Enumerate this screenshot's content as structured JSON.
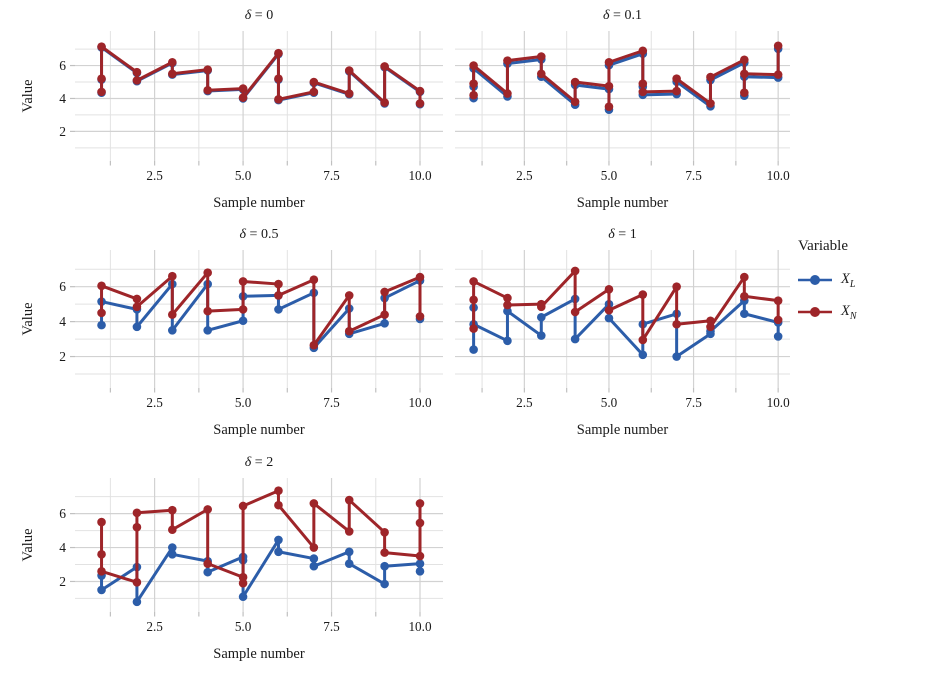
{
  "chart_data": {
    "type": "line",
    "facet_variable": "δ",
    "axes": {
      "xlabel": "Sample number",
      "ylabel": "Value",
      "xticks": [
        2.5,
        5.0,
        7.5,
        10.0
      ],
      "xtick_labels": [
        "2.5",
        "5.0",
        "7.5",
        "10.0"
      ],
      "yticks": [
        2,
        4,
        6
      ],
      "ytick_labels": [
        "2",
        "4",
        "6"
      ],
      "minor_xticks": [
        1.25,
        3.75,
        6.25,
        8.75
      ],
      "minor_yticks": [
        1,
        3,
        5,
        7
      ],
      "xlim": [
        0.25,
        10.65
      ],
      "ylim": [
        0.2,
        8.1
      ],
      "grid": true
    },
    "colors": {
      "X_L": "#2c5da9",
      "X_N": "#9e2529",
      "grid_major": "#d2d2d2",
      "grid_minor": "#e2e2e2",
      "tick": "#c0c0c0",
      "text": "#1a1a1a"
    },
    "panels": [
      {
        "delta": 0,
        "title": {
          "symbol": "δ",
          "eq": " = 0"
        },
        "series": [
          {
            "name": "X_L",
            "points": [
              [
                1,
                4.35
              ],
              [
                1,
                5.15
              ],
              [
                1,
                7.1
              ],
              [
                2,
                5.55
              ],
              [
                2,
                5.05
              ],
              [
                3,
                6.15
              ],
              [
                3,
                5.45
              ],
              [
                4,
                5.7
              ],
              [
                4,
                4.45
              ],
              [
                5,
                4.55
              ],
              [
                5,
                4.0
              ],
              [
                6,
                6.7
              ],
              [
                6,
                5.15
              ],
              [
                6,
                3.9
              ],
              [
                7,
                4.35
              ],
              [
                7,
                4.95
              ],
              [
                8,
                4.25
              ],
              [
                8,
                5.65
              ],
              [
                9,
                3.7
              ],
              [
                9,
                5.9
              ],
              [
                10,
                4.4
              ],
              [
                10,
                3.65
              ]
            ]
          },
          {
            "name": "X_N",
            "points": [
              [
                1,
                4.4
              ],
              [
                1,
                5.2
              ],
              [
                1,
                7.15
              ],
              [
                2,
                5.6
              ],
              [
                2,
                5.1
              ],
              [
                3,
                6.2
              ],
              [
                3,
                5.5
              ],
              [
                4,
                5.75
              ],
              [
                4,
                4.5
              ],
              [
                5,
                4.6
              ],
              [
                5,
                4.05
              ],
              [
                6,
                6.75
              ],
              [
                6,
                5.2
              ],
              [
                6,
                3.95
              ],
              [
                7,
                4.4
              ],
              [
                7,
                5.0
              ],
              [
                8,
                4.3
              ],
              [
                8,
                5.7
              ],
              [
                9,
                3.75
              ],
              [
                9,
                5.95
              ],
              [
                10,
                4.45
              ],
              [
                10,
                3.7
              ]
            ]
          }
        ]
      },
      {
        "delta": 0.1,
        "title": {
          "symbol": "δ",
          "eq": " = 0.1"
        },
        "series": [
          {
            "name": "X_L",
            "points": [
              [
                1,
                4.02
              ],
              [
                1,
                4.72
              ],
              [
                1,
                5.82
              ],
              [
                2,
                4.12
              ],
              [
                2,
                6.12
              ],
              [
                3,
                6.37
              ],
              [
                3,
                5.32
              ],
              [
                4,
                3.62
              ],
              [
                4,
                4.82
              ],
              [
                5,
                4.57
              ],
              [
                5,
                3.32
              ],
              [
                5,
                6.02
              ],
              [
                6,
                6.72
              ],
              [
                6,
                4.72
              ],
              [
                6,
                4.22
              ],
              [
                7,
                4.27
              ],
              [
                7,
                5.02
              ],
              [
                8,
                3.52
              ],
              [
                8,
                5.12
              ],
              [
                9,
                6.17
              ],
              [
                9,
                4.17
              ],
              [
                9,
                5.32
              ],
              [
                10,
                5.27
              ],
              [
                10,
                7.02
              ]
            ]
          },
          {
            "name": "X_N",
            "points": [
              [
                1,
                4.2
              ],
              [
                1,
                4.9
              ],
              [
                1,
                6.0
              ],
              [
                2,
                4.3
              ],
              [
                2,
                6.3
              ],
              [
                3,
                6.55
              ],
              [
                3,
                5.5
              ],
              [
                4,
                3.8
              ],
              [
                4,
                5.0
              ],
              [
                5,
                4.75
              ],
              [
                5,
                3.5
              ],
              [
                5,
                6.2
              ],
              [
                6,
                6.9
              ],
              [
                6,
                4.9
              ],
              [
                6,
                4.4
              ],
              [
                7,
                4.45
              ],
              [
                7,
                5.2
              ],
              [
                8,
                3.7
              ],
              [
                8,
                5.3
              ],
              [
                9,
                6.35
              ],
              [
                9,
                4.35
              ],
              [
                9,
                5.5
              ],
              [
                10,
                5.45
              ],
              [
                10,
                7.2
              ]
            ]
          }
        ]
      },
      {
        "delta": 0.5,
        "title": {
          "symbol": "δ",
          "eq": " = 0.5"
        },
        "series": [
          {
            "name": "X_L",
            "points": [
              [
                1,
                3.8
              ],
              [
                1,
                5.15
              ],
              [
                2,
                4.7
              ],
              [
                2,
                3.7
              ],
              [
                3,
                6.15
              ],
              [
                3,
                3.5
              ],
              [
                4,
                6.15
              ],
              [
                4,
                3.5
              ],
              [
                5,
                4.05
              ],
              [
                5,
                5.45
              ],
              [
                6,
                5.5
              ],
              [
                6,
                4.7
              ],
              [
                7,
                5.65
              ],
              [
                7,
                2.5
              ],
              [
                8,
                4.75
              ],
              [
                8,
                3.3
              ],
              [
                9,
                3.9
              ],
              [
                9,
                5.35
              ],
              [
                10,
                6.35
              ],
              [
                10,
                4.15
              ]
            ]
          },
          {
            "name": "X_N",
            "points": [
              [
                1,
                4.5
              ],
              [
                1,
                6.05
              ],
              [
                2,
                5.3
              ],
              [
                2,
                4.85
              ],
              [
                3,
                6.6
              ],
              [
                3,
                4.4
              ],
              [
                4,
                6.8
              ],
              [
                4,
                4.6
              ],
              [
                5,
                4.7
              ],
              [
                5,
                6.3
              ],
              [
                6,
                6.15
              ],
              [
                6,
                5.5
              ],
              [
                7,
                6.4
              ],
              [
                7,
                2.65
              ],
              [
                8,
                5.5
              ],
              [
                8,
                3.45
              ],
              [
                9,
                4.4
              ],
              [
                9,
                5.7
              ],
              [
                10,
                6.55
              ],
              [
                10,
                4.3
              ]
            ]
          }
        ]
      },
      {
        "delta": 1,
        "title": {
          "symbol": "δ",
          "eq": " = 1"
        },
        "series": [
          {
            "name": "X_L",
            "points": [
              [
                1,
                4.8
              ],
              [
                1,
                2.4
              ],
              [
                1,
                3.85
              ],
              [
                2,
                2.9
              ],
              [
                2,
                4.6
              ],
              [
                3,
                3.2
              ],
              [
                3,
                4.25
              ],
              [
                4,
                5.3
              ],
              [
                4,
                3.0
              ],
              [
                5,
                5.0
              ],
              [
                5,
                4.2
              ],
              [
                6,
                2.1
              ],
              [
                6,
                3.85
              ],
              [
                7,
                4.45
              ],
              [
                7,
                2.0
              ],
              [
                8,
                3.3
              ],
              [
                8,
                3.45
              ],
              [
                9,
                5.2
              ],
              [
                9,
                4.45
              ],
              [
                10,
                3.95
              ],
              [
                10,
                3.15
              ]
            ]
          },
          {
            "name": "X_N",
            "points": [
              [
                1,
                3.6
              ],
              [
                1,
                5.25
              ],
              [
                1,
                6.3
              ],
              [
                2,
                5.35
              ],
              [
                2,
                4.95
              ],
              [
                3,
                5.0
              ],
              [
                3,
                4.85
              ],
              [
                4,
                6.9
              ],
              [
                4,
                4.55
              ],
              [
                5,
                5.85
              ],
              [
                5,
                4.65
              ],
              [
                6,
                5.55
              ],
              [
                6,
                2.95
              ],
              [
                7,
                6.0
              ],
              [
                7,
                3.85
              ],
              [
                8,
                4.05
              ],
              [
                8,
                3.7
              ],
              [
                9,
                6.55
              ],
              [
                9,
                5.45
              ],
              [
                10,
                5.2
              ],
              [
                10,
                4.1
              ]
            ]
          }
        ]
      },
      {
        "delta": 2,
        "title": {
          "symbol": "δ",
          "eq": " = 2"
        },
        "series": [
          {
            "name": "X_L",
            "points": [
              [
                1,
                2.35
              ],
              [
                1,
                1.5
              ],
              [
                2,
                2.85
              ],
              [
                2,
                0.8
              ],
              [
                3,
                4.0
              ],
              [
                3,
                3.6
              ],
              [
                4,
                3.2
              ],
              [
                4,
                2.55
              ],
              [
                5,
                3.45
              ],
              [
                5,
                3.25
              ],
              [
                5,
                1.1
              ],
              [
                6,
                4.45
              ],
              [
                6,
                3.75
              ],
              [
                7,
                3.35
              ],
              [
                7,
                2.9
              ],
              [
                8,
                3.75
              ],
              [
                8,
                3.05
              ],
              [
                9,
                1.85
              ],
              [
                9,
                2.9
              ],
              [
                10,
                3.05
              ],
              [
                10,
                2.6
              ]
            ]
          },
          {
            "name": "X_N",
            "points": [
              [
                1,
                5.5
              ],
              [
                1,
                3.6
              ],
              [
                1,
                2.6
              ],
              [
                2,
                1.95
              ],
              [
                2,
                5.2
              ],
              [
                2,
                6.05
              ],
              [
                3,
                6.2
              ],
              [
                3,
                5.05
              ],
              [
                4,
                6.25
              ],
              [
                4,
                3.05
              ],
              [
                5,
                2.25
              ],
              [
                5,
                1.9
              ],
              [
                5,
                6.45
              ],
              [
                6,
                7.35
              ],
              [
                6,
                6.5
              ],
              [
                7,
                4.0
              ],
              [
                7,
                6.6
              ],
              [
                8,
                4.95
              ],
              [
                8,
                6.8
              ],
              [
                9,
                4.9
              ],
              [
                9,
                3.7
              ],
              [
                10,
                3.5
              ],
              [
                10,
                6.6
              ],
              [
                10,
                5.45
              ]
            ]
          }
        ]
      }
    ],
    "legend": {
      "title": "Variable",
      "items": [
        {
          "label_main": "X",
          "label_sub": "L",
          "series": "X_L"
        },
        {
          "label_main": "X",
          "label_sub": "N",
          "series": "X_N"
        }
      ]
    }
  }
}
